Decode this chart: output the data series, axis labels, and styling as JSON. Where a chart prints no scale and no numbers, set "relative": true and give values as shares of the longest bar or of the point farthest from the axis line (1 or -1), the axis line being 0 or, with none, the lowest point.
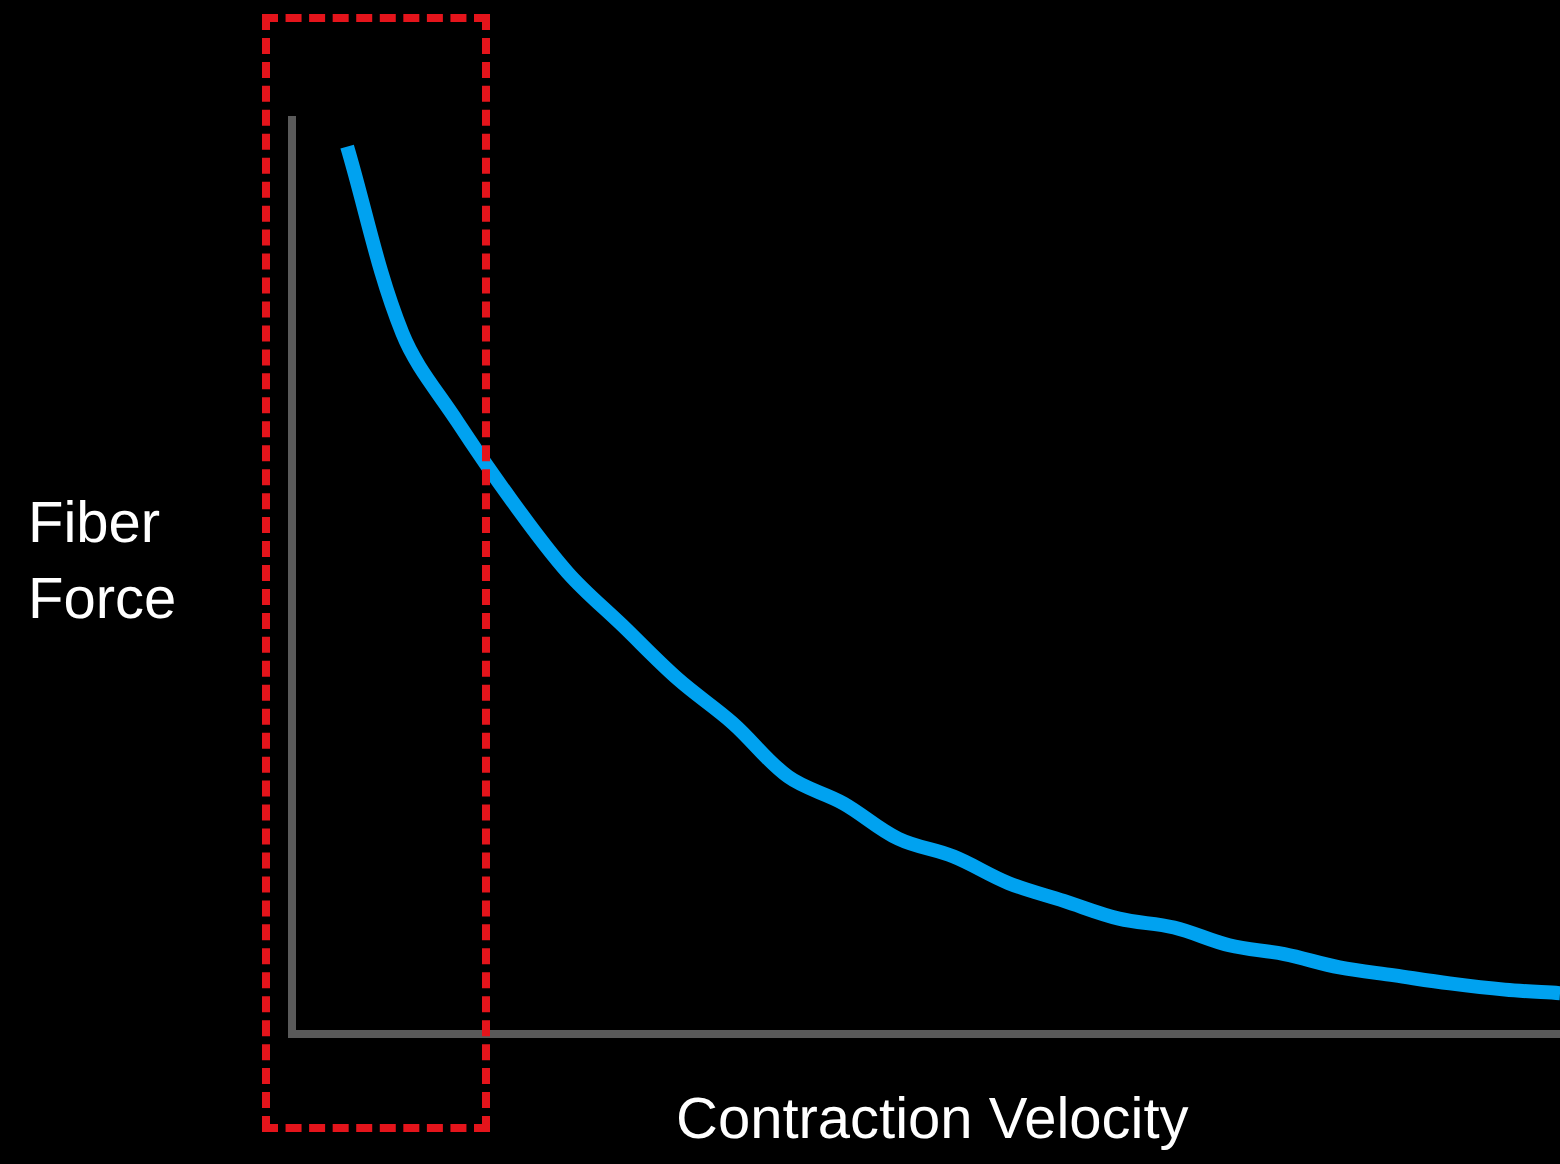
{
  "chart_data": {
    "type": "line",
    "relative": true,
    "xlabel": "Contraction Velocity",
    "ylabel": "Fiber Force",
    "categories": [
      null,
      null,
      null,
      null,
      null,
      null,
      null,
      null,
      null,
      null,
      null,
      null,
      null,
      null,
      null,
      null,
      null,
      null,
      null,
      null,
      null,
      null,
      null,
      null
    ],
    "series": [
      {
        "color": "#00a2f0",
        "values": [
          null,
          1,
          0.79,
          0.69,
          0.6,
          0.52,
          0.46,
          0.4,
          0.35,
          0.29,
          0.26,
          0.22,
          0.2,
          0.17,
          0.15,
          0.13,
          0.12,
          0.1,
          0.09,
          0.075,
          0.066,
          0.057,
          0.05,
          0.046
        ]
      }
    ],
    "legend": false,
    "marker": "none",
    "line_style": "solid"
  }
}
